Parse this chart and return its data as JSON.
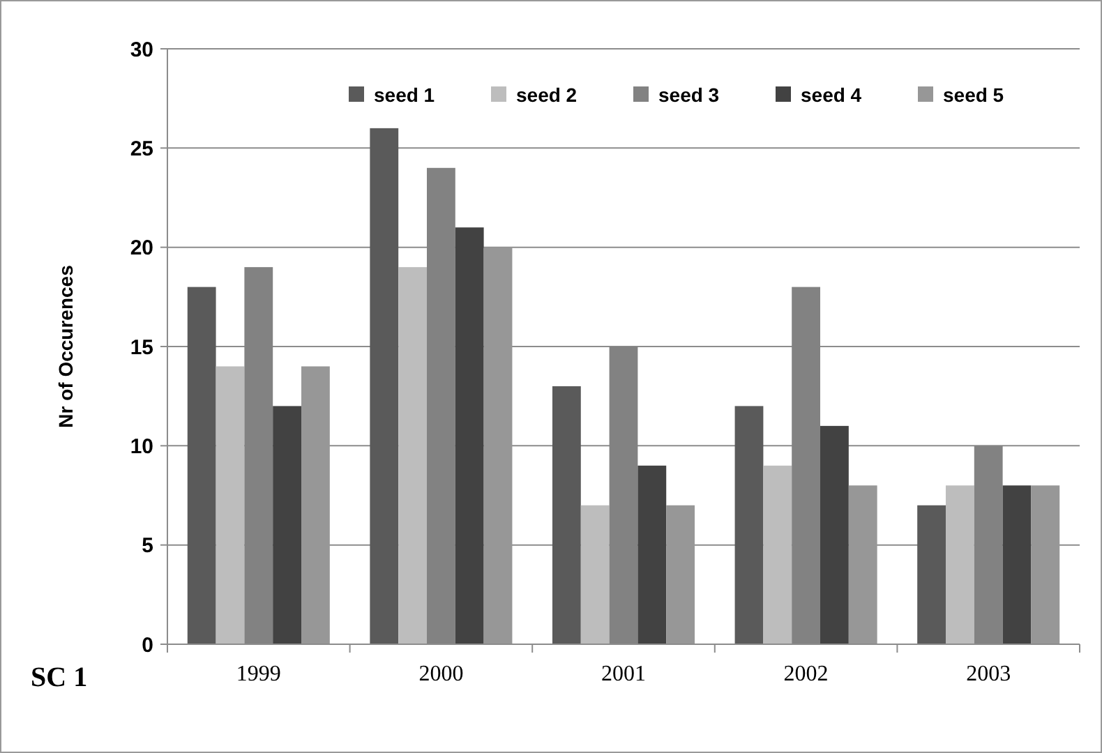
{
  "chart_data": {
    "type": "bar",
    "ylabel": "Nr of Occurences",
    "categories": [
      "1999",
      "2000",
      "2001",
      "2002",
      "2003"
    ],
    "series": [
      {
        "name": "seed 1",
        "color": "#5a5a5a",
        "values": [
          18,
          26,
          13,
          12,
          7
        ]
      },
      {
        "name": "seed 2",
        "color": "#bdbdbd",
        "values": [
          14,
          19,
          7,
          9,
          8
        ]
      },
      {
        "name": "seed 3",
        "color": "#828282",
        "values": [
          19,
          24,
          15,
          18,
          10
        ]
      },
      {
        "name": "seed 4",
        "color": "#424242",
        "values": [
          12,
          21,
          9,
          11,
          8
        ]
      },
      {
        "name": "seed 5",
        "color": "#979797",
        "values": [
          14,
          20,
          7,
          8,
          8
        ]
      }
    ],
    "ylim": [
      0,
      30
    ],
    "yticks": [
      0,
      5,
      10,
      15,
      20,
      25,
      30
    ],
    "grid": "y",
    "legend": "top right",
    "annotations": [
      "SC 1"
    ]
  }
}
